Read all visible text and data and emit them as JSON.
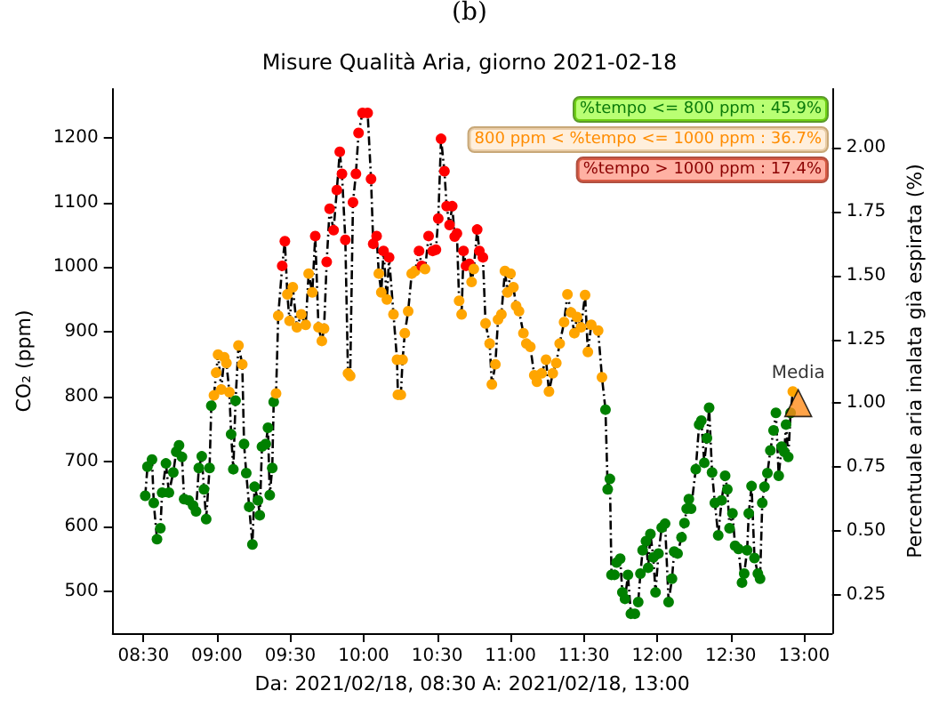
{
  "chart_data": {
    "type": "line",
    "title": "Misure Qualità Aria, giorno 2021-02-18",
    "xlabel": "Da: 2021/02/18, 08:30 A: 2021/02/18, 13:00",
    "ylabel": "CO₂ (ppm)",
    "y2label": "Percentuale aria inalata già espirata (%)",
    "annotations": [
      "(b)",
      "%tempo <= 800 ppm : 45.9%",
      "800 ppm < %tempo <= 1000 ppm : 36.7%",
      "%tempo > 1000 ppm : 17.4%"
    ],
    "xlim": [
      8.29,
      13.19
    ],
    "xticks": [
      {
        "value": 8.5,
        "label": "08:30"
      },
      {
        "value": 9,
        "label": "09:00"
      },
      {
        "value": 9.5,
        "label": "09:30"
      },
      {
        "value": 10,
        "label": "10:00"
      },
      {
        "value": 10.5,
        "label": "10:30"
      },
      {
        "value": 11,
        "label": "11:00"
      },
      {
        "value": 11.5,
        "label": "11:30"
      },
      {
        "value": 12,
        "label": "12:00"
      },
      {
        "value": 12.5,
        "label": "12:30"
      },
      {
        "value": 13,
        "label": "13:00"
      }
    ],
    "ylim": [
      435,
      1275
    ],
    "yticks": [
      500,
      600,
      700,
      800,
      900,
      1000,
      1100,
      1200
    ],
    "y2lim": [
      0.1,
      2.23
    ],
    "y2ticks": [
      0.25,
      {
        "value": 0.5,
        "label": "0.50"
      },
      0.75,
      {
        "value": 1,
        "label": "1.00"
      },
      1.25,
      {
        "value": 1.5,
        "label": "1.50"
      },
      1.75,
      {
        "value": 2,
        "label": "2.00"
      }
    ],
    "grid": false,
    "legend": false,
    "marker": "circle",
    "line_style": "dashed",
    "series": [
      {
        "color": "#000000",
        "x": [
          8.512,
          8.527,
          8.558,
          8.57,
          8.592,
          8.615,
          8.627,
          8.653,
          8.673,
          8.703,
          8.723,
          8.742,
          8.762,
          8.777,
          8.808,
          8.838,
          8.858,
          8.877,
          8.897,
          8.912,
          8.927,
          8.95,
          8.962,
          8.98,
          8.995,
          9.008,
          9.03,
          9.05,
          9.065,
          9.085,
          9.097,
          9.112,
          9.127,
          9.147,
          9.173,
          9.185,
          9.2,
          9.22,
          9.242,
          9.257,
          9.28,
          9.292,
          9.307,
          9.333,
          9.348,
          9.36,
          9.377,
          9.387,
          9.403,
          9.418,
          9.445,
          9.463,
          9.48,
          9.495,
          9.517,
          9.545,
          9.575,
          9.605,
          9.625,
          9.65,
          9.67,
          9.692,
          9.715,
          9.73,
          9.748,
          9.768,
          9.795,
          9.817,
          9.837,
          9.852,
          9.875,
          9.893,
          9.908,
          9.927,
          9.947,
          9.965,
          9.992,
          10.027,
          10.05,
          10.065,
          10.088,
          10.103,
          10.12,
          10.135,
          10.158,
          10.173,
          10.203,
          10.227,
          10.233,
          10.253,
          10.265,
          10.28,
          10.303,
          10.327,
          10.35,
          10.377,
          10.395,
          10.418,
          10.442,
          10.47,
          10.492,
          10.508,
          10.527,
          10.55,
          10.565,
          10.585,
          10.603,
          10.62,
          10.635,
          10.65,
          10.667,
          10.68,
          10.697,
          10.72,
          10.735,
          10.75,
          10.773,
          10.788,
          10.812,
          10.83,
          10.858,
          10.873,
          10.897,
          10.915,
          10.938,
          10.962,
          10.98,
          11.0,
          11.02,
          11.038,
          11.058,
          11.088,
          11.108,
          11.135,
          11.162,
          11.18,
          11.212,
          11.242,
          11.262,
          11.288,
          11.312,
          11.335,
          11.365,
          11.388,
          11.412,
          11.435,
          11.453,
          11.48,
          11.508,
          11.527,
          11.55,
          11.597,
          11.623,
          11.647,
          11.662,
          11.677,
          11.688,
          11.708,
          11.723,
          11.747,
          11.762,
          11.78,
          11.8,
          11.82,
          11.847,
          11.87,
          11.885,
          11.9,
          11.923,
          11.938,
          11.953,
          11.973,
          11.988,
          12.008,
          12.03,
          12.053,
          12.077,
          12.1,
          12.115,
          12.138,
          12.165,
          12.185,
          12.2,
          12.215,
          12.23,
          12.262,
          12.285,
          12.3,
          12.32,
          12.338,
          12.353,
          12.373,
          12.392,
          12.415,
          12.438,
          12.462,
          12.477,
          12.492,
          12.512,
          12.53,
          12.553,
          12.577,
          12.592,
          12.612,
          12.623,
          12.642,
          12.662,
          12.685,
          12.7,
          12.715,
          12.73,
          12.75,
          12.77,
          12.792,
          12.808,
          12.827,
          12.847,
          12.865,
          12.877,
          12.892,
          12.908,
          12.923
        ],
        "values": [
          647,
          692,
          703,
          636,
          580,
          597,
          652,
          697,
          652,
          683,
          715,
          725,
          707,
          642,
          640,
          632,
          623,
          690,
          708,
          657,
          611,
          690,
          786,
          802,
          837,
          865,
          811,
          861,
          852,
          807,
          742,
          688,
          794,
          879,
          850,
          727,
          682,
          630,
          572,
          661,
          640,
          617,
          723,
          727,
          752,
          648,
          690,
          792,
          805,
          925,
          1002,
          1040,
          958,
          917,
          969,
          907,
          927,
          911,
          990,
          961,
          1048,
          907,
          886,
          905,
          1008,
          1090,
          1057,
          1119,
          1178,
          1144,
          1042,
          836,
          832,
          1100,
          1144,
          1207,
          1238,
          1238,
          1136,
          1036,
          1048,
          990,
          961,
          1025,
          950,
          1015,
          927,
          857,
          803,
          803,
          857,
          898,
          932,
          990,
          994,
          1025,
          1002,
          997,
          1048,
          1025,
          1027,
          1075,
          1198,
          1148,
          1094,
          1065,
          1094,
          1047,
          1052,
          948,
          927,
          1025,
          1002,
          1005,
          977,
          997,
          1058,
          1025,
          1015,
          913,
          882,
          819,
          850,
          919,
          927,
          994,
          961,
          990,
          969,
          940,
          932,
          898,
          882,
          877,
          833,
          823,
          836,
          857,
          808,
          836,
          852,
          882,
          915,
          958,
          930,
          898,
          923,
          907,
          957,
          869,
          911,
          902,
          830,
          780,
          657,
          673,
          525,
          525,
          544,
          550,
          498,
          488,
          525,
          465,
          465,
          483,
          527,
          563,
          577,
          536,
          588,
          552,
          498,
          558,
          598,
          604,
          483,
          519,
          561,
          558,
          583,
          605,
          627,
          642,
          627,
          688,
          757,
          763,
          698,
          736,
          783,
          683,
          636,
          586,
          640,
          678,
          657,
          597,
          620,
          570,
          565,
          513,
          527,
          563,
          620,
          662,
          551,
          527,
          519,
          636,
          661,
          682,
          717,
          748,
          775,
          678,
          723,
          715,
          757,
          707,
          775,
          808
        ],
        "colors": [
          "#008000",
          "#008000",
          "#008000",
          "#008000",
          "#008000",
          "#008000",
          "#008000",
          "#008000",
          "#008000",
          "#008000",
          "#008000",
          "#008000",
          "#008000",
          "#008000",
          "#008000",
          "#008000",
          "#008000",
          "#008000",
          "#008000",
          "#008000",
          "#008000",
          "#008000",
          "#008000",
          "#ffa500",
          "#ffa500",
          "#ffa500",
          "#ffa500",
          "#ffa500",
          "#ffa500",
          "#ffa500",
          "#008000",
          "#008000",
          "#008000",
          "#ffa500",
          "#ffa500",
          "#008000",
          "#008000",
          "#008000",
          "#008000",
          "#008000",
          "#008000",
          "#008000",
          "#008000",
          "#008000",
          "#008000",
          "#008000",
          "#008000",
          "#008000",
          "#ffa500",
          "#ffa500",
          "#ff0000",
          "#ff0000",
          "#ffa500",
          "#ffa500",
          "#ffa500",
          "#ffa500",
          "#ffa500",
          "#ffa500",
          "#ffa500",
          "#ffa500",
          "#ff0000",
          "#ffa500",
          "#ffa500",
          "#ffa500",
          "#ff0000",
          "#ff0000",
          "#ff0000",
          "#ff0000",
          "#ff0000",
          "#ff0000",
          "#ff0000",
          "#ffa500",
          "#ffa500",
          "#ff0000",
          "#ff0000",
          "#ff0000",
          "#ff0000",
          "#ff0000",
          "#ff0000",
          "#ff0000",
          "#ff0000",
          "#ffa500",
          "#ffa500",
          "#ff0000",
          "#ffa500",
          "#ff0000",
          "#ffa500",
          "#ffa500",
          "#ffa500",
          "#ffa500",
          "#ffa500",
          "#ffa500",
          "#ffa500",
          "#ffa500",
          "#ffa500",
          "#ff0000",
          "#ff0000",
          "#ffa500",
          "#ff0000",
          "#ff0000",
          "#ff0000",
          "#ff0000",
          "#ff0000",
          "#ff0000",
          "#ff0000",
          "#ff0000",
          "#ff0000",
          "#ff0000",
          "#ff0000",
          "#ffa500",
          "#ffa500",
          "#ff0000",
          "#ff0000",
          "#ff0000",
          "#ffa500",
          "#ffa500",
          "#ff0000",
          "#ff0000",
          "#ff0000",
          "#ffa500",
          "#ffa500",
          "#ffa500",
          "#ffa500",
          "#ffa500",
          "#ffa500",
          "#ffa500",
          "#ffa500",
          "#ffa500",
          "#ffa500",
          "#ffa500",
          "#ffa500",
          "#ffa500",
          "#ffa500",
          "#ffa500",
          "#ffa500",
          "#ffa500",
          "#ffa500",
          "#ffa500",
          "#ffa500",
          "#ffa500",
          "#ffa500",
          "#ffa500",
          "#ffa500",
          "#ffa500",
          "#ffa500",
          "#ffa500",
          "#ffa500",
          "#ffa500",
          "#ffa500",
          "#ffa500",
          "#ffa500",
          "#ffa500",
          "#ffa500",
          "#008000",
          "#008000",
          "#008000",
          "#008000",
          "#008000",
          "#008000",
          "#008000",
          "#008000",
          "#008000",
          "#008000",
          "#008000",
          "#008000",
          "#008000",
          "#008000",
          "#008000",
          "#008000",
          "#008000",
          "#008000",
          "#008000",
          "#008000",
          "#008000",
          "#008000",
          "#008000",
          "#008000",
          "#008000",
          "#008000",
          "#008000",
          "#008000",
          "#008000",
          "#008000",
          "#008000",
          "#008000",
          "#008000",
          "#008000",
          "#008000",
          "#008000",
          "#008000",
          "#008000",
          "#008000",
          "#008000",
          "#008000",
          "#008000",
          "#008000",
          "#008000",
          "#008000",
          "#008000",
          "#008000",
          "#008000",
          "#008000",
          "#008000",
          "#008000",
          "#008000",
          "#008000",
          "#008000",
          "#008000",
          "#008000",
          "#008000",
          "#008000",
          "#008000",
          "#008000",
          "#008000",
          "#008000",
          "#008000",
          "#008000",
          "#008000",
          "#008000",
          "#008000",
          "#008000",
          "#ffa500"
        ]
      },
      {
        "name": "Media",
        "type": "scatter",
        "axis": "y2",
        "marker": "triangle",
        "color": "#ff8c1a",
        "x": [
          12.96
        ],
        "values": [
          1.0
        ]
      }
    ]
  }
}
